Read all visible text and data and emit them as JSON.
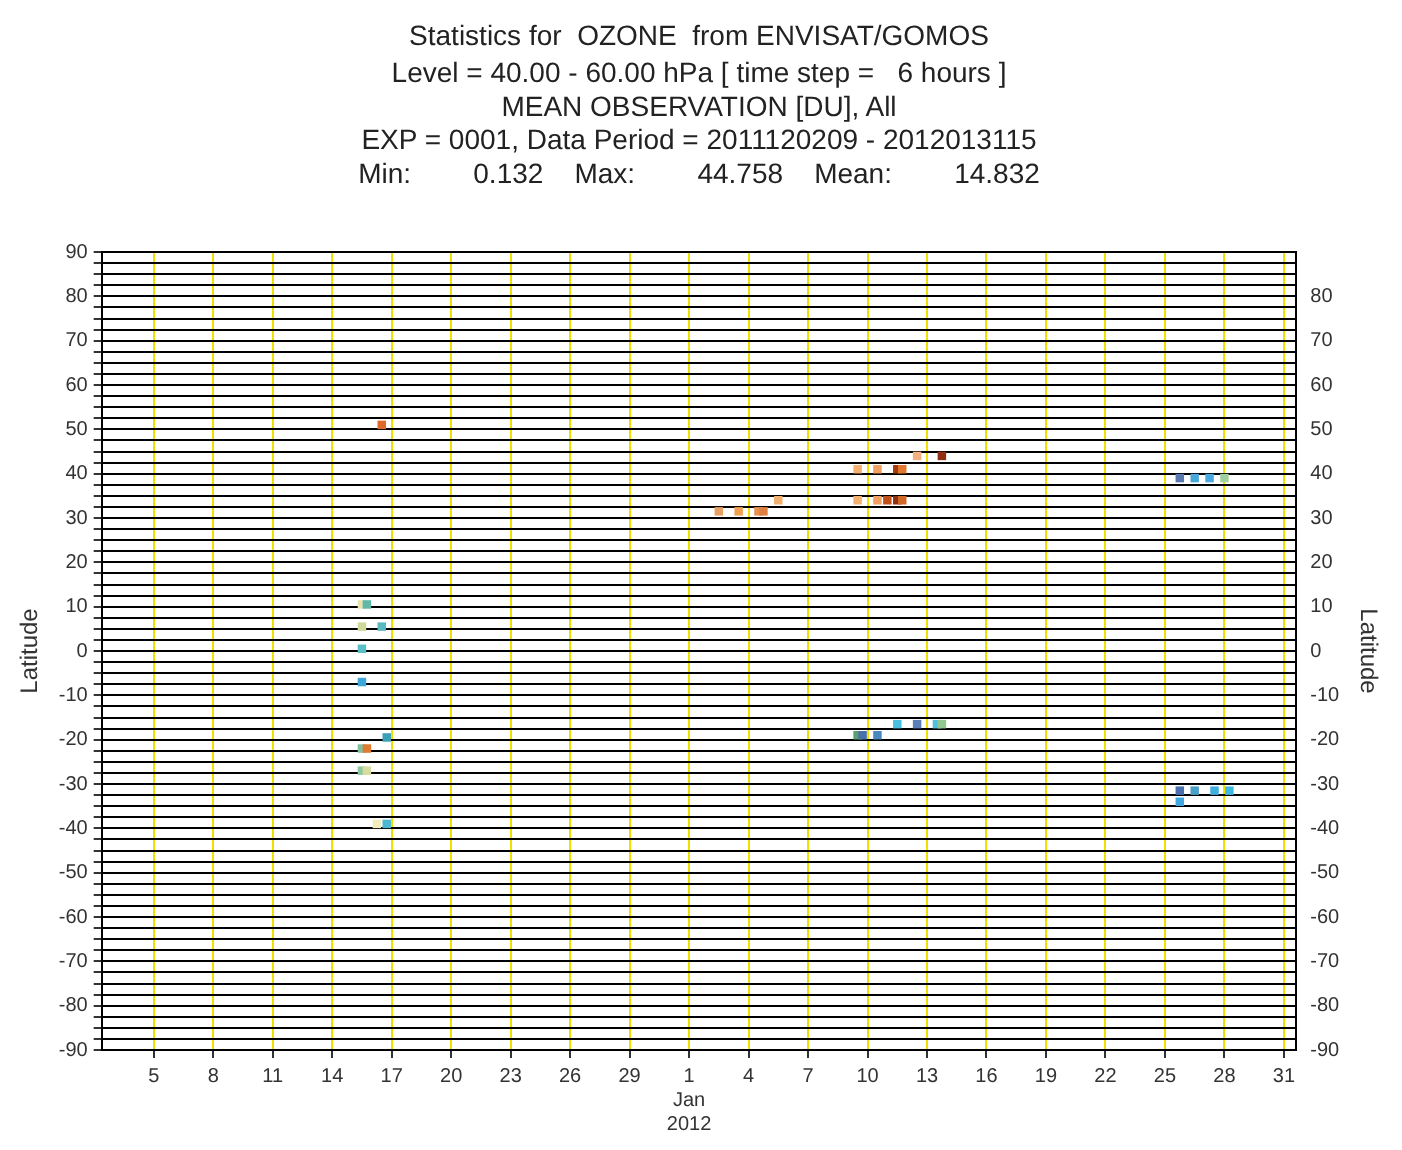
{
  "chart_data": {
    "type": "scatter",
    "title": "Statistics for  OZONE  from ENVISAT/GOMOS",
    "subtitle": "Level = 40.00 - 60.00 hPa [ time step =   6 hours ]\nMEAN OBSERVATION [DU], All\nEXP = 0001, Data Period = 2011120209 - 2012013115\nMin:        0.132    Max:        44.758    Mean:        14.832",
    "ylabel": "Latitude",
    "y2label": "Latitude",
    "x": [
      "2011-12-16T12:00",
      "2011-12-15T12:00",
      "2011-12-15T18:00",
      "2011-12-15T12:00",
      "2011-12-16T12:00",
      "2011-12-15T12:00",
      "2011-12-15T12:00",
      "2011-12-16T18:00",
      "2011-12-15T12:00",
      "2011-12-15T18:00",
      "2011-12-15T12:00",
      "2011-12-15T18:00",
      "2011-12-16T06:00",
      "2011-12-16T18:00",
      "2012-01-02T12:00",
      "2012-01-03T12:00",
      "2012-01-04T12:00",
      "2012-01-04T18:00",
      "2012-01-05T12:00",
      "2012-01-09T12:00",
      "2012-01-10T12:00",
      "2012-01-11T12:00",
      "2012-01-11T18:00",
      "2012-01-09T12:00",
      "2012-01-10T12:00",
      "2012-01-11T00:00",
      "2012-01-11T12:00",
      "2012-01-11T18:00",
      "2012-01-12T12:00",
      "2012-01-13T18:00",
      "2012-01-09T12:00",
      "2012-01-09T18:00",
      "2012-01-10T12:00",
      "2012-01-11T12:00",
      "2012-01-12T12:00",
      "2012-01-13T12:00",
      "2012-01-13T18:00",
      "2012-01-25T18:00",
      "2012-01-26T12:00",
      "2012-01-27T06:00",
      "2012-01-28T00:00",
      "2012-01-25T18:00",
      "2012-01-26T12:00",
      "2012-01-27T12:00",
      "2012-01-28T06:00",
      "2012-01-25T18:00"
    ],
    "values": [
      51,
      10.5,
      10.5,
      5.5,
      5.5,
      0.5,
      -7,
      -19.5,
      -22,
      -22,
      -27,
      -27,
      -39,
      -39,
      31.5,
      31.5,
      31.5,
      31.5,
      34,
      41,
      41,
      41,
      41,
      34,
      34,
      34,
      34,
      34,
      44,
      44,
      -19,
      -19,
      -19,
      -16.5,
      -16.5,
      -16.5,
      -16.5,
      39,
      39,
      39,
      39,
      -31.5,
      -31.5,
      -31.5,
      -31.5,
      -34
    ],
    "colors": [
      "#e06828",
      "#e8e4b0",
      "#5fb8a8",
      "#cfd99a",
      "#5ab8c0",
      "#5bbfc8",
      "#3ea8d8",
      "#3aa0b8",
      "#7fc0a0",
      "#e07a30",
      "#8cc8a0",
      "#d8dca0",
      "#f0ecc0",
      "#4ab8d0",
      "#e8a060",
      "#f0a050",
      "#e89050",
      "#e08040",
      "#f0b070",
      "#f4b070",
      "#f0a060",
      "#a83a10",
      "#e07830",
      "#f4b070",
      "#f0a060",
      "#c05018",
      "#903010",
      "#d06828",
      "#f0b080",
      "#903010",
      "#5aa070",
      "#4a70a8",
      "#4a88c0",
      "#4ac0e0",
      "#5a80b8",
      "#50c0e0",
      "#90c890",
      "#5a78b0",
      "#4aa8d8",
      "#48a8e0",
      "#a0d0a0",
      "#4a70b0",
      "#4aa0c8",
      "#40b0e0",
      "#40b8e0",
      "#40a8e0"
    ],
    "marker": "square",
    "legend": false,
    "grid": true,
    "xlim": [
      "2011-12-02T09:00",
      "2012-01-31T15:00"
    ],
    "xticks": [
      {
        "value": "2011-12-05",
        "label": "5"
      },
      {
        "value": "2011-12-08",
        "label": "8"
      },
      {
        "value": "2011-12-11",
        "label": "11"
      },
      {
        "value": "2011-12-14",
        "label": "14"
      },
      {
        "value": "2011-12-17",
        "label": "17"
      },
      {
        "value": "2011-12-20",
        "label": "20"
      },
      {
        "value": "2011-12-23",
        "label": "23"
      },
      {
        "value": "2011-12-26",
        "label": "26"
      },
      {
        "value": "2011-12-29",
        "label": "29"
      },
      {
        "value": "2012-01-01",
        "label": "1\nJan\n2012"
      },
      {
        "value": "2012-01-04",
        "label": "4"
      },
      {
        "value": "2012-01-07",
        "label": "7"
      },
      {
        "value": "2012-01-10",
        "label": "10"
      },
      {
        "value": "2012-01-13",
        "label": "13"
      },
      {
        "value": "2012-01-16",
        "label": "16"
      },
      {
        "value": "2012-01-19",
        "label": "19"
      },
      {
        "value": "2012-01-22",
        "label": "22"
      },
      {
        "value": "2012-01-25",
        "label": "25"
      },
      {
        "value": "2012-01-28",
        "label": "28"
      },
      {
        "value": "2012-01-31",
        "label": "31"
      }
    ],
    "ylim": [
      -90,
      90
    ],
    "yticks": [
      -90,
      {
        "value": -87.5,
        "label": null
      },
      {
        "value": -85,
        "label": null
      },
      {
        "value": -82.5,
        "label": null
      },
      -80,
      {
        "value": -77.5,
        "label": null
      },
      {
        "value": -75,
        "label": null
      },
      {
        "value": -72.5,
        "label": null
      },
      -70,
      {
        "value": -67.5,
        "label": null
      },
      {
        "value": -65,
        "label": null
      },
      {
        "value": -62.5,
        "label": null
      },
      -60,
      {
        "value": -57.5,
        "label": null
      },
      {
        "value": -55,
        "label": null
      },
      {
        "value": -52.5,
        "label": null
      },
      -50,
      {
        "value": -47.5,
        "label": null
      },
      {
        "value": -45,
        "label": null
      },
      {
        "value": -42.5,
        "label": null
      },
      -40,
      {
        "value": -37.5,
        "label": null
      },
      {
        "value": -35,
        "label": null
      },
      {
        "value": -32.5,
        "label": null
      },
      -30,
      {
        "value": -27.5,
        "label": null
      },
      {
        "value": -25,
        "label": null
      },
      {
        "value": -22.5,
        "label": null
      },
      -20,
      {
        "value": -17.5,
        "label": null
      },
      {
        "value": -15,
        "label": null
      },
      {
        "value": -12.5,
        "label": null
      },
      -10,
      {
        "value": -7.5,
        "label": null
      },
      {
        "value": -5,
        "label": null
      },
      {
        "value": -2.5,
        "label": null
      },
      0,
      {
        "value": 2.5,
        "label": null
      },
      {
        "value": 5,
        "label": null
      },
      {
        "value": 7.5,
        "label": null
      },
      10,
      {
        "value": 12.5,
        "label": null
      },
      {
        "value": 15,
        "label": null
      },
      {
        "value": 17.5,
        "label": null
      },
      20,
      {
        "value": 22.5,
        "label": null
      },
      {
        "value": 25,
        "label": null
      },
      {
        "value": 27.5,
        "label": null
      },
      30,
      {
        "value": 32.5,
        "label": null
      },
      {
        "value": 35,
        "label": null
      },
      {
        "value": 37.5,
        "label": null
      },
      40,
      {
        "value": 42.5,
        "label": null
      },
      {
        "value": 45,
        "label": null
      },
      {
        "value": 47.5,
        "label": null
      },
      50,
      {
        "value": 52.5,
        "label": null
      },
      {
        "value": 55,
        "label": null
      },
      {
        "value": 57.5,
        "label": null
      },
      60,
      {
        "value": 62.5,
        "label": null
      },
      {
        "value": 65,
        "label": null
      },
      {
        "value": 67.5,
        "label": null
      },
      70,
      {
        "value": 72.5,
        "label": null
      },
      {
        "value": 75,
        "label": null
      },
      {
        "value": 77.5,
        "label": null
      },
      80,
      {
        "value": 82.5,
        "label": null
      },
      {
        "value": 85,
        "label": null
      },
      {
        "value": 87.5,
        "label": null
      },
      90
    ],
    "y2lim": [
      -90,
      90
    ],
    "y2ticks": [
      -90,
      -80,
      -70,
      -60,
      -50,
      -40,
      -30,
      -20,
      -10,
      0,
      10,
      20,
      30,
      40,
      50,
      60,
      70,
      80
    ]
  }
}
